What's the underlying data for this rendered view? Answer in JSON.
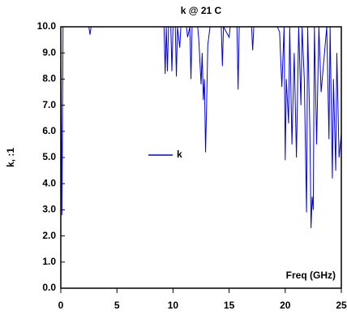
{
  "chart_data": {
    "type": "line",
    "title": "k @ 21 C",
    "xlabel": "Freq (GHz)",
    "ylabel": "k, :1",
    "x": [
      0,
      0.1,
      0.2,
      0.4,
      2.5,
      2.6,
      2.7,
      9.2,
      9.3,
      9.4,
      9.5,
      9.6,
      9.8,
      9.9,
      10.0,
      10.2,
      10.3,
      10.4,
      10.6,
      10.7,
      11.2,
      11.3,
      11.5,
      11.6,
      11.7,
      12.2,
      12.3,
      12.5,
      12.6,
      12.7,
      12.8,
      12.9,
      13.0,
      13.1,
      13.3,
      13.5,
      14.3,
      14.4,
      14.5,
      15.0,
      15.1,
      15.7,
      15.8,
      15.9,
      17.0,
      17.1,
      17.2,
      19.3,
      19.5,
      19.7,
      19.9,
      20.0,
      20.1,
      20.3,
      20.4,
      20.6,
      20.8,
      21.0,
      21.2,
      21.4,
      21.5,
      21.7,
      21.9,
      22.0,
      22.2,
      22.3,
      22.4,
      22.5,
      22.6,
      22.8,
      23.0,
      23.2,
      23.5,
      23.7,
      23.9,
      24.0,
      24.2,
      24.3,
      24.5,
      24.6,
      24.8,
      25.0
    ],
    "series": [
      {
        "name": "k",
        "color": "#0000dd",
        "values": [
          10,
          2.8,
          10,
          10,
          10,
          9.7,
          10,
          10,
          8.2,
          10,
          8.3,
          10,
          10,
          8.3,
          10,
          10,
          8.1,
          10,
          9.2,
          10,
          10,
          9.6,
          10,
          8.0,
          10,
          10,
          9.5,
          7.8,
          9,
          7.2,
          8,
          5.2,
          7.1,
          9.3,
          10,
          10,
          10,
          8.5,
          10,
          9.6,
          10,
          10,
          7.6,
          10,
          10,
          9.1,
          10,
          10,
          9.8,
          7.7,
          10,
          4.9,
          8,
          6.3,
          10,
          5.5,
          9,
          5,
          10,
          7,
          10,
          8,
          2.9,
          10,
          6,
          2.3,
          3.5,
          3.0,
          10,
          5.5,
          10,
          7.5,
          9,
          10,
          5.7,
          10,
          4.2,
          8,
          4.5,
          9,
          5,
          5.9
        ]
      }
    ],
    "xlim": [
      0,
      25
    ],
    "xticks": [
      0,
      5,
      10,
      15,
      20,
      25
    ],
    "ylim": [
      0,
      10
    ],
    "yticks": [
      {
        "value": 0,
        "label": "0.0"
      },
      {
        "value": 1,
        "label": "1.0"
      },
      {
        "value": 2,
        "label": "2.0"
      },
      {
        "value": 3,
        "label": "3.0"
      },
      {
        "value": 4,
        "label": "4.0"
      },
      {
        "value": 5,
        "label": "5.0"
      },
      {
        "value": 6,
        "label": "6.0"
      },
      {
        "value": 7,
        "label": "7.0"
      },
      {
        "value": 8,
        "label": "8.0"
      },
      {
        "value": 9,
        "label": "9.0"
      },
      {
        "value": 10,
        "label": "10.0"
      }
    ],
    "grid": false,
    "legend": "center"
  }
}
